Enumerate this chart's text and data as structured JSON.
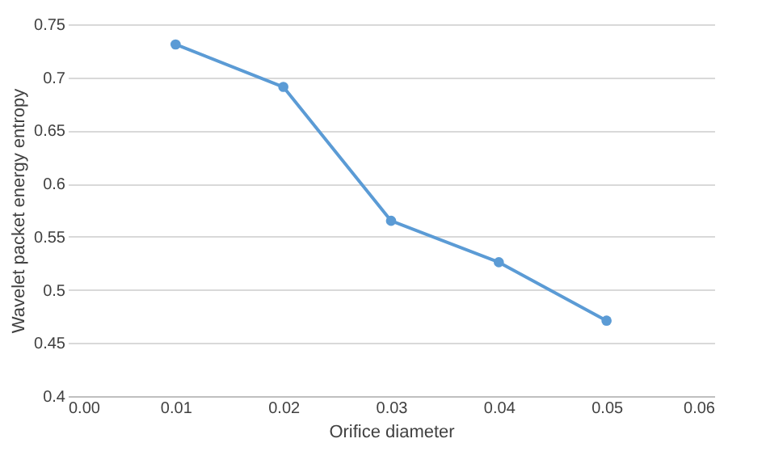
{
  "chart_data": {
    "type": "line",
    "xlabel": "Orifice diameter",
    "ylabel": "Wavelet packet energy entropy",
    "x": [
      0.01,
      0.02,
      0.03,
      0.04,
      0.05
    ],
    "series": [
      {
        "color": "#5b9bd5",
        "values": [
          0.731,
          0.691,
          0.565,
          0.526,
          0.471
        ]
      }
    ],
    "xlim": [
      0,
      0.06
    ],
    "xticks": [
      {
        "value": 0,
        "label": "0.00"
      },
      {
        "value": 0.01,
        "label": "0.01"
      },
      {
        "value": 0.02,
        "label": "0.02"
      },
      {
        "value": 0.03,
        "label": "0.03"
      },
      {
        "value": 0.04,
        "label": "0.04"
      },
      {
        "value": 0.05,
        "label": "0.05"
      },
      {
        "value": 0.06,
        "label": "0.06"
      }
    ],
    "ylim": [
      0.4,
      0.75
    ],
    "yticks": [
      0.4,
      0.45,
      0.5,
      0.55,
      0.6,
      0.65,
      0.7,
      0.75
    ],
    "grid": "y",
    "marker": "circle",
    "line_style": "solid"
  }
}
